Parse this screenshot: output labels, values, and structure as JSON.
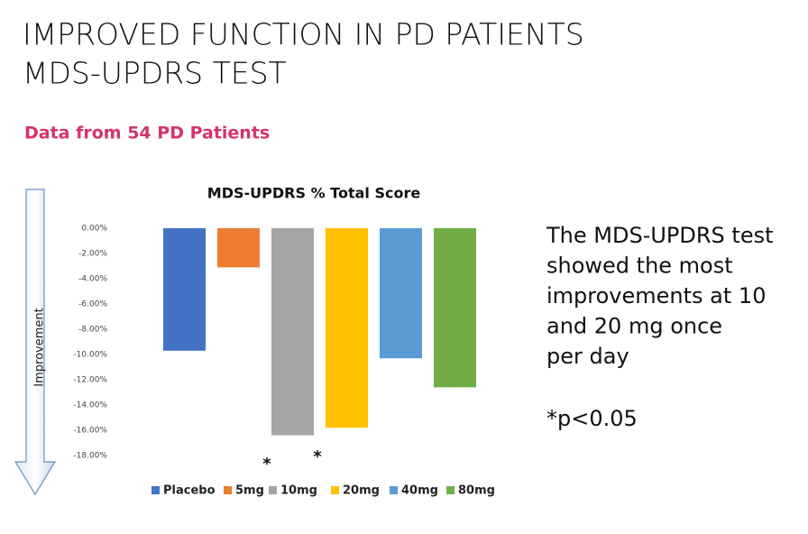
{
  "title_lines": [
    "IMPROVED FUNCTION IN PD PATIENTS",
    "MDS-UPDRS TEST"
  ],
  "subtitle": "Data from 54 PD Patients",
  "arrow_label": "Improvement",
  "side_text": [
    "The MDS-UPDRS test",
    "showed the most",
    "improvements at 10",
    "and 20 mg once",
    "per day"
  ],
  "footnote": "*p<0.05",
  "chart_data": {
    "type": "bar",
    "title": "MDS-UPDRS % Total Score",
    "categories": [
      null
    ],
    "series": [
      {
        "name": "Placebo",
        "color": "#4472c4",
        "values": [
          -9.7
        ]
      },
      {
        "name": "5mg",
        "color": "#ed7d31",
        "values": [
          -3.1
        ]
      },
      {
        "name": "10mg",
        "color": "#a5a5a5",
        "values": [
          -16.4
        ]
      },
      {
        "name": "20mg",
        "color": "#ffc000",
        "values": [
          -15.8
        ]
      },
      {
        "name": "40mg",
        "color": "#5b9bd5",
        "values": [
          -10.3
        ]
      },
      {
        "name": "80mg",
        "color": "#70ad47",
        "values": [
          -12.6
        ]
      }
    ],
    "annotations": [
      "*",
      "*"
    ],
    "ylim": [
      -18,
      0
    ],
    "yticks": [
      {
        "value": 0,
        "label": "0.00%"
      },
      {
        "value": -2,
        "label": "-2.00%"
      },
      {
        "value": -4,
        "label": "-4.00%"
      },
      {
        "value": -6,
        "label": "-6.00%"
      },
      {
        "value": -8,
        "label": "-8.00%"
      },
      {
        "value": -10,
        "label": "-10.00%"
      },
      {
        "value": -12,
        "label": "-12.00%"
      },
      {
        "value": -14,
        "label": "-14.00%"
      },
      {
        "value": -16,
        "label": "-16.00%"
      },
      {
        "value": -18,
        "label": "-18.00%"
      }
    ],
    "grid": false,
    "legend": "bottom"
  }
}
